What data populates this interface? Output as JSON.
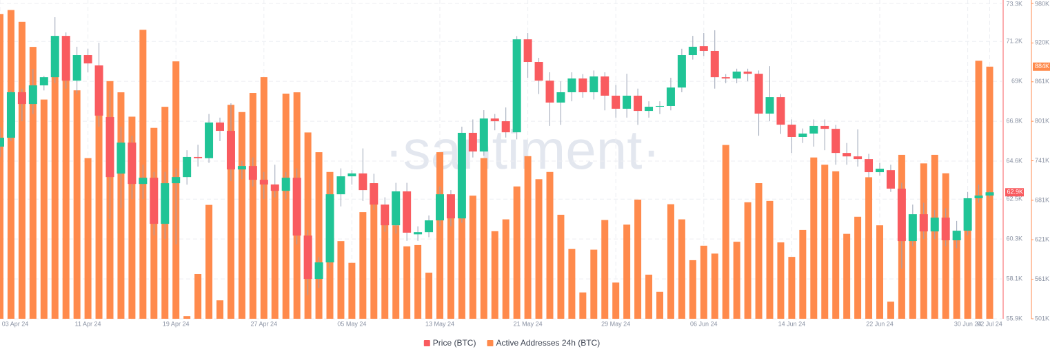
{
  "chart_data": {
    "type": "candlestick",
    "watermark": "·santiment·",
    "categories": [
      "03 Apr 24",
      null,
      null,
      null,
      null,
      null,
      null,
      null,
      "11 Apr 24",
      null,
      null,
      null,
      null,
      null,
      null,
      null,
      "19 Apr 24",
      null,
      null,
      null,
      null,
      null,
      null,
      null,
      "27 Apr 24",
      null,
      null,
      null,
      null,
      null,
      null,
      null,
      "05 May 24",
      null,
      null,
      null,
      null,
      null,
      null,
      null,
      "13 May 24",
      null,
      null,
      null,
      null,
      null,
      null,
      null,
      "21 May 24",
      null,
      null,
      null,
      null,
      null,
      null,
      null,
      "29 May 24",
      null,
      null,
      null,
      null,
      null,
      null,
      null,
      "06 Jun 24",
      null,
      null,
      null,
      null,
      null,
      null,
      null,
      "14 Jun 24",
      null,
      null,
      null,
      null,
      null,
      null,
      null,
      "22 Jun 24",
      null,
      null,
      null,
      null,
      null,
      null,
      null,
      "30 Jun 24",
      null,
      "02 Jul 24"
    ],
    "ylim": [
      55.9,
      73.3
    ],
    "yticks": [
      {
        "value": 55.9,
        "label": "55.9K"
      },
      {
        "value": 58.1,
        "label": "58.1K"
      },
      {
        "value": 60.3,
        "label": "60.3K"
      },
      {
        "value": 62.5,
        "label": "62.5K"
      },
      {
        "value": 64.6,
        "label": "64.6K"
      },
      {
        "value": 66.8,
        "label": "66.8K"
      },
      {
        "value": 69,
        "label": "69K"
      },
      {
        "value": 71.2,
        "label": "71.2K"
      },
      {
        "value": 73.3,
        "label": "73.3K"
      }
    ],
    "y2lim": [
      501,
      980
    ],
    "y2ticks": [
      {
        "value": 501,
        "label": "501K"
      },
      {
        "value": 561,
        "label": "561K"
      },
      {
        "value": 621,
        "label": "621K"
      },
      {
        "value": 681,
        "label": "681K"
      },
      {
        "value": 741,
        "label": "741K"
      },
      {
        "value": 801,
        "label": "801K"
      },
      {
        "value": 861,
        "label": "861K"
      },
      {
        "value": 920,
        "label": "920K"
      },
      {
        "value": 980,
        "label": "980K"
      }
    ],
    "grid": true,
    "legend": "bottom",
    "series": [
      {
        "name": "Price (BTC)",
        "type": "candlestick",
        "color": "#f95b5f",
        "up_color": "#20c496",
        "down_color": "#f95b5f",
        "wick_color": "#9aa3b5",
        "last_label": "62.9K",
        "open": [
          65.4,
          65.89,
          68.4,
          67.75,
          68.78,
          69.23,
          71.51,
          69.04,
          70.45,
          69.88,
          67.03,
          63.91,
          65.62,
          63.34,
          63.68,
          61.14,
          63.38,
          63.72,
          64.83,
          64.76,
          66.73,
          66.27,
          64.14,
          64.33,
          63.57,
          63.31,
          62.96,
          63.68,
          60.49,
          58.1,
          59.01,
          62.77,
          63.76,
          63.92,
          63.38,
          62.2,
          61.06,
          62.93,
          60.56,
          60.68,
          61.33,
          62.77,
          61.44,
          66.16,
          65.13,
          66.95,
          66.8,
          66.19,
          71.32,
          70.07,
          69.04,
          67.83,
          68.4,
          69.16,
          68.4,
          69.27,
          68.21,
          67.49,
          68.21,
          67.37,
          67.6,
          67.64,
          68.66,
          70.45,
          70.94,
          70.68,
          69.23,
          69.16,
          69.54,
          69.42,
          67.22,
          68.13,
          66.61,
          65.93,
          66.12,
          66.54,
          66.38,
          65.05,
          64.86,
          64.71,
          63.99,
          64.1,
          63.08,
          60.19,
          61.67,
          60.72,
          61.48,
          60.23,
          60.76,
          62.55,
          62.7
        ],
        "high": [
          66.46,
          68.5,
          68.6,
          69.69,
          69.3,
          72.54,
          71.7,
          70.91,
          70.8,
          71.13,
          68.5,
          66.5,
          66.0,
          64.4,
          64.0,
          64.0,
          64.2,
          65.2,
          65.5,
          67.2,
          67.0,
          67.79,
          64.6,
          64.8,
          64.0,
          64.4,
          64.0,
          64.2,
          60.8,
          59.3,
          63.6,
          64.2,
          64.1,
          65.3,
          63.9,
          62.6,
          63.4,
          63.4,
          61.0,
          61.6,
          63.2,
          63.0,
          66.5,
          66.9,
          67.41,
          67.2,
          67.56,
          71.5,
          71.67,
          70.3,
          69.5,
          69.0,
          69.5,
          69.4,
          69.6,
          69.5,
          68.8,
          69.42,
          68.6,
          67.9,
          67.9,
          69.2,
          70.8,
          71.51,
          71.67,
          71.82,
          69.4,
          69.7,
          69.7,
          69.6,
          69.84,
          68.3,
          66.9,
          66.4,
          66.9,
          66.9,
          66.6,
          65.6,
          66.35,
          65.0,
          64.5,
          64.4,
          63.4,
          62.2,
          62.3,
          61.9,
          62.0,
          61.3,
          62.9,
          63.3,
          62.95
        ],
        "low": [
          64.83,
          65.7,
          66.8,
          67.2,
          68.5,
          68.9,
          68.6,
          68.3,
          69.5,
          66.5,
          61.41,
          62.0,
          62.5,
          62.5,
          60.5,
          60.3,
          60.0,
          63.3,
          64.3,
          64.5,
          65.7,
          63.5,
          63.6,
          63.2,
          62.5,
          62.6,
          62.5,
          60.0,
          57.2,
          57.6,
          58.7,
          62.1,
          63.3,
          62.4,
          61.9,
          60.7,
          60.6,
          60.2,
          60.2,
          60.4,
          61.0,
          61.0,
          61.2,
          64.8,
          64.9,
          66.3,
          65.9,
          65.8,
          69.2,
          68.3,
          66.54,
          66.6,
          67.9,
          68.1,
          68.0,
          67.4,
          67.0,
          67.0,
          66.6,
          67.0,
          67.2,
          67.4,
          68.4,
          70.2,
          70.4,
          68.6,
          68.9,
          68.9,
          69.0,
          66.0,
          66.8,
          66.1,
          65.05,
          65.6,
          65.4,
          65.2,
          64.4,
          64.4,
          64.3,
          63.7,
          63.8,
          62.9,
          58.67,
          59.9,
          60.3,
          60.3,
          59.9,
          59.8,
          60.5,
          62.3,
          62.6
        ],
        "close": [
          65.89,
          68.4,
          67.75,
          68.78,
          69.23,
          71.51,
          69.04,
          70.45,
          69.99,
          67.11,
          63.72,
          65.62,
          63.34,
          63.68,
          61.14,
          63.38,
          63.72,
          64.83,
          64.76,
          66.73,
          66.27,
          64.14,
          64.33,
          63.57,
          63.31,
          62.96,
          63.68,
          60.49,
          58.1,
          59.01,
          62.77,
          63.76,
          63.92,
          63.0,
          62.2,
          61.06,
          62.93,
          60.65,
          60.68,
          61.33,
          62.77,
          61.44,
          66.16,
          65.13,
          66.95,
          66.8,
          66.19,
          71.32,
          70.07,
          69.04,
          67.83,
          68.4,
          69.16,
          68.4,
          69.27,
          68.21,
          67.49,
          68.21,
          67.37,
          67.6,
          67.64,
          68.66,
          70.45,
          70.91,
          70.68,
          69.23,
          69.16,
          69.54,
          69.42,
          67.22,
          68.13,
          66.61,
          65.93,
          66.12,
          66.54,
          66.38,
          65.05,
          64.86,
          64.71,
          63.99,
          64.18,
          63.08,
          60.19,
          61.67,
          60.72,
          61.48,
          60.23,
          60.76,
          62.55,
          62.7,
          62.88
        ]
      },
      {
        "name": "Active Addresses 24h (BTC)",
        "type": "bar",
        "axis": "y2",
        "color": "#ff8a4c",
        "last_label": "884K",
        "values": [
          964,
          970,
          952,
          914,
          834,
          870,
          880,
          848,
          745,
          874,
          862,
          845,
          808,
          940,
          791,
          823,
          892,
          505,
          569,
          674,
          529,
          826,
          815,
          844,
          868,
          705,
          843,
          845,
          784,
          754,
          724,
          619,
          586,
          663,
          707,
          661,
          643,
          611,
          613,
          571,
          754,
          656,
          677,
          688,
          745,
          634,
          652,
          702,
          748,
          713,
          724,
          659,
          607,
          541,
          606,
          651,
          556,
          644,
          682,
          568,
          542,
          675,
          652,
          590,
          612,
          600,
          765,
          618,
          678,
          707,
          680,
          617,
          595,
          636,
          746,
          735,
          725,
          630,
          656,
          716,
          643,
          527,
          750,
          651,
          737,
          750,
          722,
          634,
          650,
          893,
          884
        ]
      }
    ]
  }
}
